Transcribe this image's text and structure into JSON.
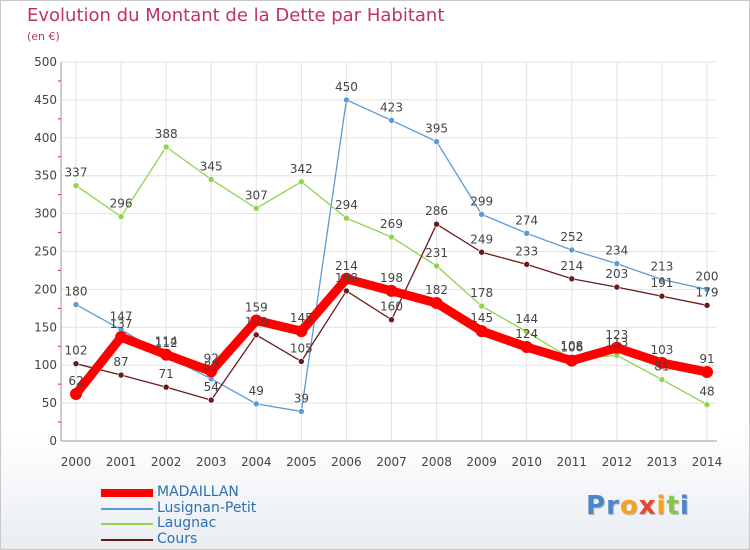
{
  "chart_data": {
    "type": "line",
    "title": "Evolution du Montant de la Dette par Habitant",
    "subtitle": "(en €)",
    "xlabel": "",
    "ylabel": "",
    "x": [
      "2000",
      "2001",
      "2002",
      "2003",
      "2004",
      "2005",
      "2006",
      "2007",
      "2008",
      "2009",
      "2010",
      "2011",
      "2012",
      "2013",
      "2014"
    ],
    "ylim": [
      0,
      500
    ],
    "yticks": [
      "0",
      "50",
      "100",
      "150",
      "200",
      "250",
      "300",
      "350",
      "400",
      "450",
      "500"
    ],
    "grid": true,
    "legend_position": "bottom-left",
    "series": [
      {
        "name": "MADAILLAN",
        "color": "#ff0000",
        "emphasis": true,
        "values": [
          62,
          137,
          114,
          92,
          159,
          145,
          214,
          198,
          182,
          145,
          124,
          106,
          123,
          103,
          91
        ],
        "labels": [
          "62",
          "137",
          "114",
          "92",
          "159",
          "145",
          "214",
          "198",
          "182",
          "145",
          "124",
          "106",
          "123",
          "103",
          "91"
        ]
      },
      {
        "name": "Lusignan-Petit",
        "color": "#5b9bd5",
        "values": [
          180,
          147,
          112,
          82,
          49,
          39,
          450,
          423,
          395,
          299,
          274,
          252,
          234,
          213,
          200
        ],
        "labels": [
          "180",
          "147",
          "112",
          "82",
          "49",
          "39",
          "450",
          "423",
          "395",
          "299",
          "274",
          "252",
          "234",
          "213",
          "200"
        ]
      },
      {
        "name": "Laugnac",
        "color": "#8fd44a",
        "values": [
          337,
          296,
          388,
          345,
          307,
          342,
          294,
          269,
          231,
          178,
          144,
          108,
          113,
          81,
          48
        ],
        "labels": [
          "337",
          "296",
          "388",
          "345",
          "307",
          "342",
          "294",
          "269",
          "231",
          "178",
          "144",
          "108",
          "113",
          "81",
          "48"
        ]
      },
      {
        "name": "Cours",
        "color": "#6b1a1a",
        "values": [
          102,
          87,
          71,
          54,
          140,
          105,
          198,
          160,
          286,
          249,
          233,
          214,
          203,
          191,
          179
        ],
        "labels": [
          "102",
          "87",
          "71",
          "54",
          "140",
          "105",
          "198",
          "160",
          "286",
          "249",
          "233",
          "214",
          "203",
          "191",
          "179"
        ]
      }
    ]
  },
  "logo": {
    "letters": [
      "P",
      "r",
      "o",
      "x",
      "i",
      "t",
      "i"
    ],
    "colors": [
      "#4a86c8",
      "#4a86c8",
      "#f7a21b",
      "#e8452c",
      "#f7a21b",
      "#8bc34a",
      "#4a86c8"
    ]
  }
}
